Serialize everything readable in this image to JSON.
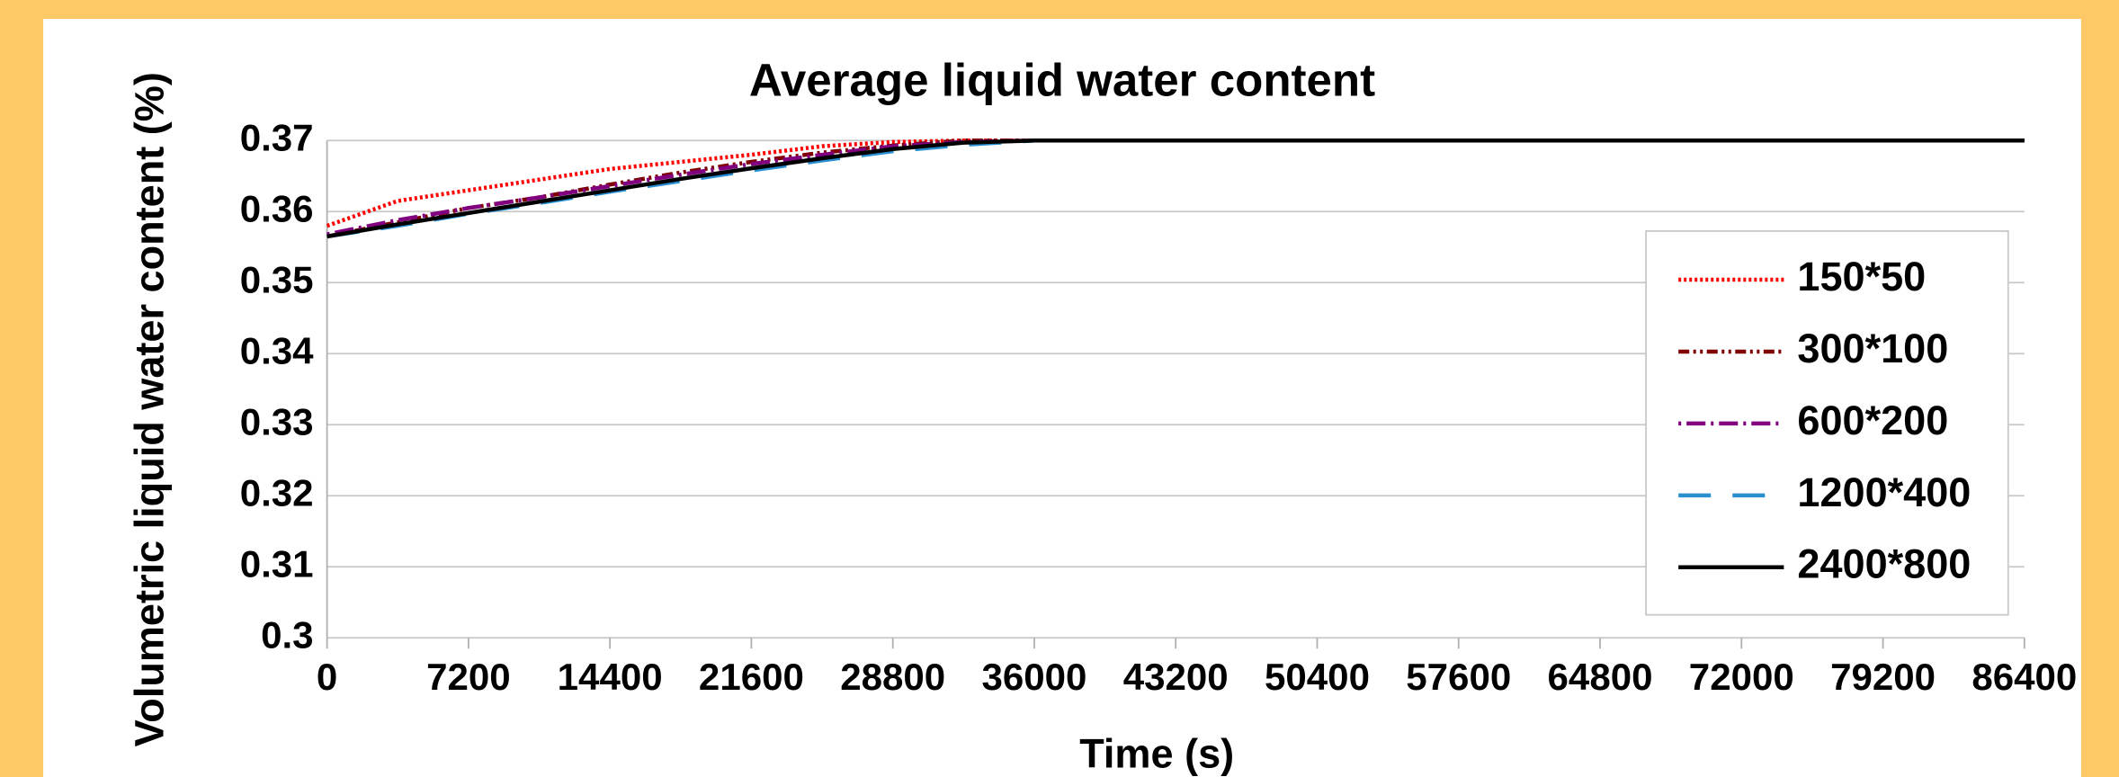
{
  "chart_data": {
    "type": "line",
    "title": "Average liquid water content",
    "x_label": "Time (s)",
    "y_label": "Volumetric liquid water content (%)",
    "x": [
      0,
      3600,
      7200,
      10800,
      14400,
      18000,
      21600,
      25200,
      28800,
      32400,
      36000,
      86400
    ],
    "series": [
      {
        "name": "150*50",
        "color": "#ff0000",
        "dash": "dotted",
        "values": [
          0.358,
          0.3615,
          0.363,
          0.3645,
          0.366,
          0.367,
          0.368,
          0.3692,
          0.3698,
          0.37,
          0.37,
          0.37
        ]
      },
      {
        "name": "300*100",
        "color": "#7f0000",
        "dash": "dash-dot-dot",
        "values": [
          0.3565,
          0.3585,
          0.3605,
          0.362,
          0.3638,
          0.3655,
          0.367,
          0.3683,
          0.3693,
          0.37,
          0.37,
          0.37
        ]
      },
      {
        "name": "600*200",
        "color": "#800080",
        "dash": "dash-dot",
        "values": [
          0.3568,
          0.3588,
          0.3605,
          0.362,
          0.3636,
          0.3652,
          0.3667,
          0.368,
          0.3692,
          0.3698,
          0.37,
          0.37
        ]
      },
      {
        "name": "1200*400",
        "color": "#2a8fd0",
        "dash": "long-dash",
        "values": [
          0.3565,
          0.358,
          0.3597,
          0.3612,
          0.3628,
          0.3643,
          0.3658,
          0.3672,
          0.3685,
          0.3694,
          0.37,
          0.37
        ]
      },
      {
        "name": "2400*800",
        "color": "#000000",
        "dash": "solid",
        "values": [
          0.3565,
          0.3582,
          0.3598,
          0.3614,
          0.363,
          0.3646,
          0.3661,
          0.3675,
          0.3688,
          0.3697,
          0.37,
          0.37
        ]
      }
    ],
    "xlim": [
      0,
      86400
    ],
    "xticks": [
      0,
      7200,
      14400,
      21600,
      28800,
      36000,
      43200,
      50400,
      57600,
      64800,
      72000,
      79200,
      86400
    ],
    "ylim": [
      0.3,
      0.37
    ],
    "yticks": [
      0.3,
      0.31,
      0.32,
      0.33,
      0.34,
      0.35,
      0.36,
      0.37
    ],
    "grid": true,
    "legend": "right"
  }
}
